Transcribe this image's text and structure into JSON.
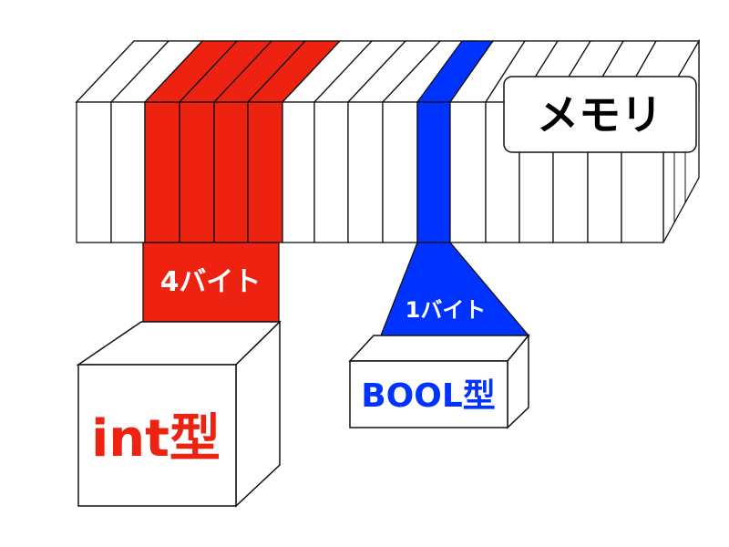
{
  "memory_label": "メモリ",
  "int_block": {
    "size_label": "4バイト",
    "type_label": "int型",
    "color": "#ee2211"
  },
  "bool_block": {
    "size_label": "1バイト",
    "type_label": "BOOL型",
    "color": "#0033ff"
  }
}
